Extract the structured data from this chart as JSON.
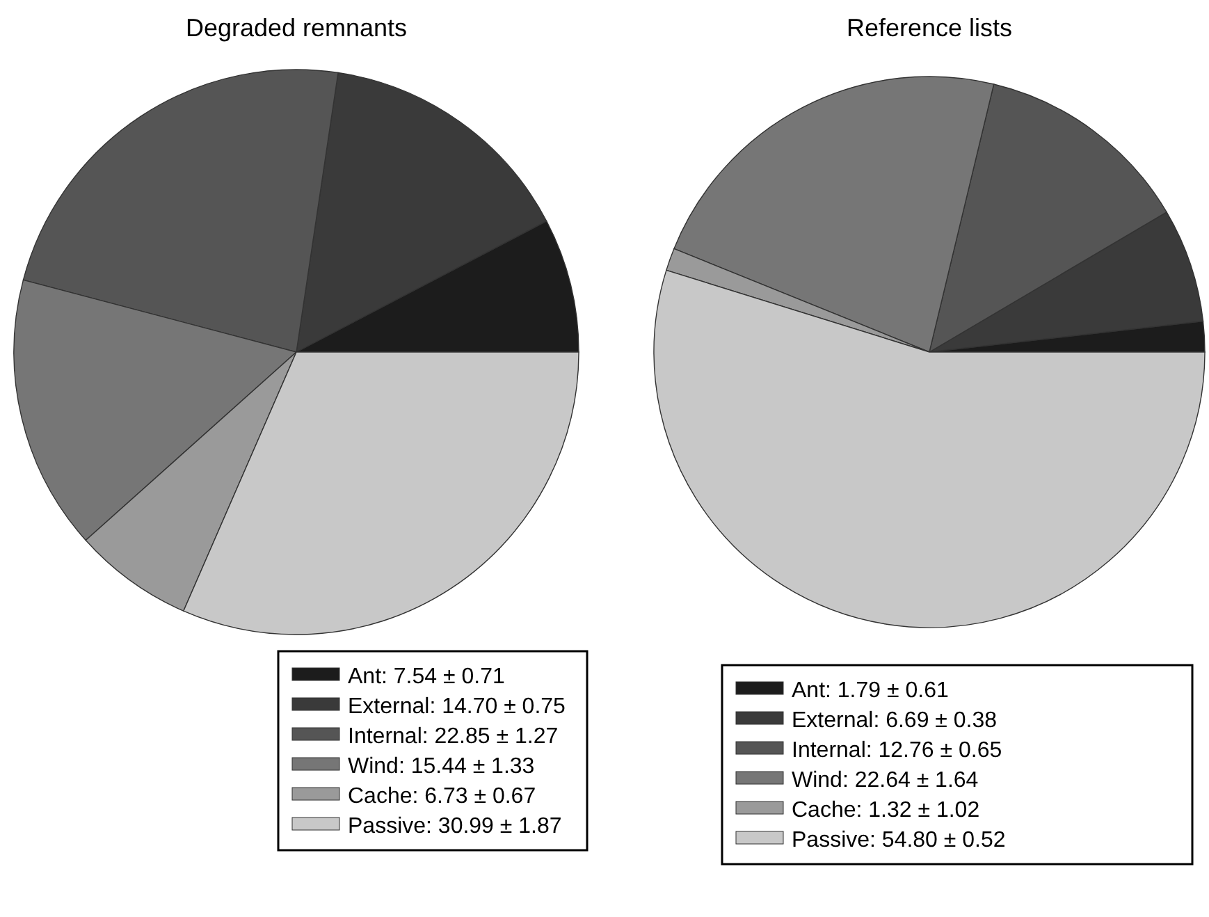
{
  "chart_data": [
    {
      "type": "pie",
      "title": "Degraded remnants",
      "categories": [
        "Ant: 7.54 ± 0.71",
        "External: 14.70 ± 0.75",
        "Internal: 22.85 ± 1.27",
        "Wind: 15.44 ± 1.33",
        "Cache: 6.73 ± 0.67",
        "Passive: 30.99 ± 1.87"
      ],
      "values": [
        7.54,
        14.7,
        22.85,
        15.44,
        6.73,
        30.99
      ],
      "colors": [
        "#1c1c1c",
        "#3a3a3a",
        "#555555",
        "#767676",
        "#9a9a9a",
        "#c8c8c8"
      ],
      "legend": "bottom"
    },
    {
      "type": "pie",
      "title": "Reference lists",
      "categories": [
        "Ant: 1.79 ± 0.61",
        "External: 6.69 ± 0.38",
        "Internal: 12.76 ± 0.65",
        "Wind: 22.64 ± 1.64",
        "Cache: 1.32 ± 1.02",
        "Passive: 54.80 ± 0.52"
      ],
      "values": [
        1.79,
        6.69,
        12.76,
        22.64,
        1.32,
        54.8
      ],
      "colors": [
        "#1c1c1c",
        "#3a3a3a",
        "#555555",
        "#767676",
        "#9a9a9a",
        "#c8c8c8"
      ],
      "legend": "bottom"
    }
  ]
}
